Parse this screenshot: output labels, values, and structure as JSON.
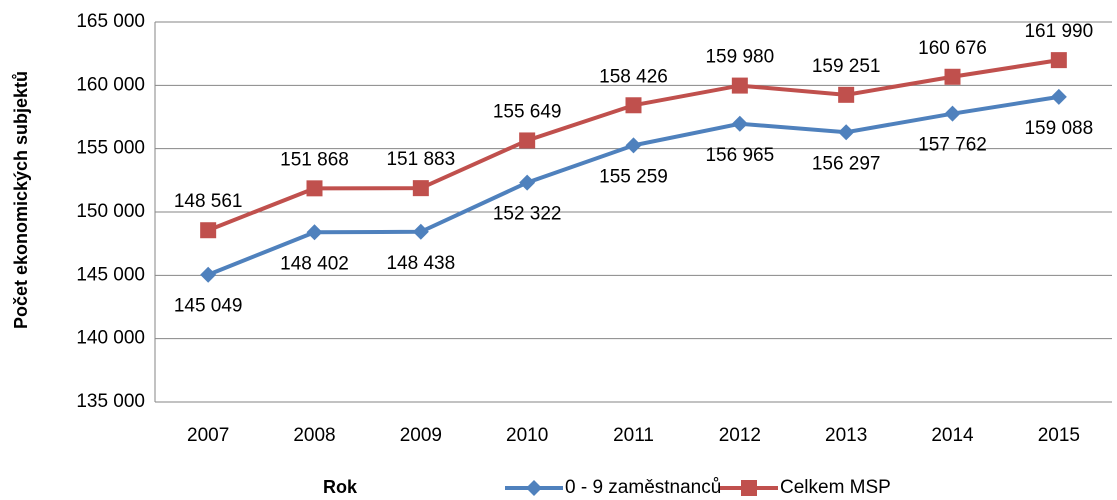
{
  "chart_data": {
    "type": "line",
    "categories": [
      "2007",
      "2008",
      "2009",
      "2010",
      "2011",
      "2012",
      "2013",
      "2014",
      "2015"
    ],
    "series": [
      {
        "name": "0 - 9 zaměstnanců",
        "color": "#4f81bd",
        "marker": "diamond",
        "values": [
          145049,
          148402,
          148438,
          152322,
          155259,
          156965,
          156297,
          157762,
          159088
        ],
        "value_labels": [
          "145 049",
          "148 402",
          "148 438",
          "152 322",
          "155 259",
          "156 965",
          "156 297",
          "157 762",
          "159 088"
        ]
      },
      {
        "name": "Celkem MSP",
        "color": "#c0504d",
        "marker": "square",
        "values": [
          148561,
          151868,
          151883,
          155649,
          158426,
          159980,
          159251,
          160676,
          161990
        ],
        "value_labels": [
          "148 561",
          "151 868",
          "151 883",
          "155 649",
          "158 426",
          "159 980",
          "159 251",
          "160 676",
          "161 990"
        ]
      }
    ],
    "xlabel": "Rok",
    "ylabel": "Počet ekonomických subjektů",
    "ylim": [
      135000,
      165000
    ],
    "yticks": [
      {
        "value": 135000,
        "label": "135 000"
      },
      {
        "value": 140000,
        "label": "140 000"
      },
      {
        "value": 145000,
        "label": "145 000"
      },
      {
        "value": 150000,
        "label": "150 000"
      },
      {
        "value": 155000,
        "label": "155 000"
      },
      {
        "value": 160000,
        "label": "160 000"
      },
      {
        "value": 165000,
        "label": "165 000"
      }
    ],
    "grid": true,
    "legend": "bottom"
  }
}
